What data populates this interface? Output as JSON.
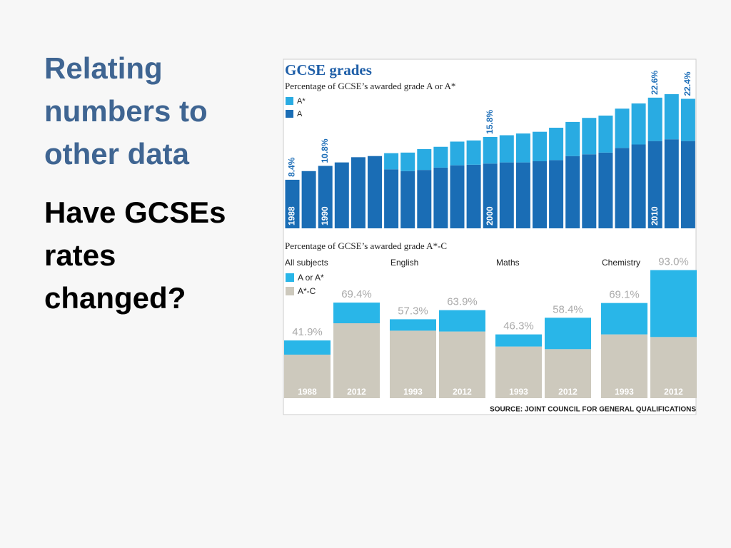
{
  "slide": {
    "heading": "Relating numbers to other data",
    "question": "Have GCSEs rates changed?"
  },
  "chart_data": [
    {
      "type": "stacked_bar",
      "title": "GCSE grades",
      "subtitle": "Percentage of GCSE’s awarded grade A or A*",
      "categories": [
        "1988",
        null,
        "1990",
        null,
        null,
        null,
        null,
        null,
        null,
        null,
        null,
        null,
        "2000",
        null,
        null,
        null,
        null,
        null,
        null,
        null,
        null,
        null,
        "2010",
        null,
        null
      ],
      "series": [
        {
          "name": "A",
          "color": "#1a6db5",
          "values": [
            8.4,
            9.9,
            10.8,
            11.4,
            12.3,
            12.5,
            10.2,
            9.9,
            10.1,
            10.5,
            10.9,
            11.0,
            11.2,
            11.4,
            11.4,
            11.6,
            11.8,
            12.5,
            12.8,
            13.1,
            13.9,
            14.5,
            15.1,
            15.4,
            15.1
          ]
        },
        {
          "name": "A*",
          "color": "#29abe2",
          "values": [
            null,
            null,
            null,
            null,
            null,
            null,
            2.8,
            3.2,
            3.6,
            3.6,
            4.1,
            4.2,
            4.6,
            4.7,
            5.0,
            5.1,
            5.6,
            5.9,
            6.3,
            6.4,
            6.8,
            7.1,
            7.5,
            7.8,
            7.3
          ]
        }
      ],
      "value_labels": [
        "8.4%",
        null,
        "10.8%",
        null,
        null,
        null,
        null,
        null,
        null,
        null,
        null,
        null,
        "15.8%",
        null,
        null,
        null,
        null,
        null,
        null,
        null,
        null,
        null,
        "22.6%",
        null,
        "22.4%"
      ],
      "ylim": [
        0,
        29
      ]
    },
    {
      "type": "grouped_stacked_bar",
      "subtitle": "Percentage of GCSE’s awarded grade A*-C",
      "groups": [
        "All subjects",
        "English",
        "Maths",
        "Chemistry"
      ],
      "categories": [
        "1988",
        "2012",
        "1993",
        "2012",
        "1993",
        "2012",
        "1993",
        "2012"
      ],
      "series": [
        {
          "name": "A*-C",
          "color": "#cdc9bd",
          "values": [
            31.6,
            54.4,
            49.0,
            48.4,
            37.5,
            35.6,
            46.3,
            44.4
          ]
        },
        {
          "name": "A or A*",
          "color": "#29b6e8",
          "values": [
            10.3,
            15.0,
            8.3,
            15.5,
            8.8,
            22.8,
            22.8,
            48.6
          ]
        }
      ],
      "value_labels": [
        "41.9%",
        "69.4%",
        "57.3%",
        "63.9%",
        "46.3%",
        "58.4%",
        "69.1%",
        "93.0%"
      ],
      "ylim": [
        0,
        100
      ],
      "source": "SOURCE: JOINT COUNCIL FOR GENERAL QUALIFICATIONS"
    }
  ]
}
